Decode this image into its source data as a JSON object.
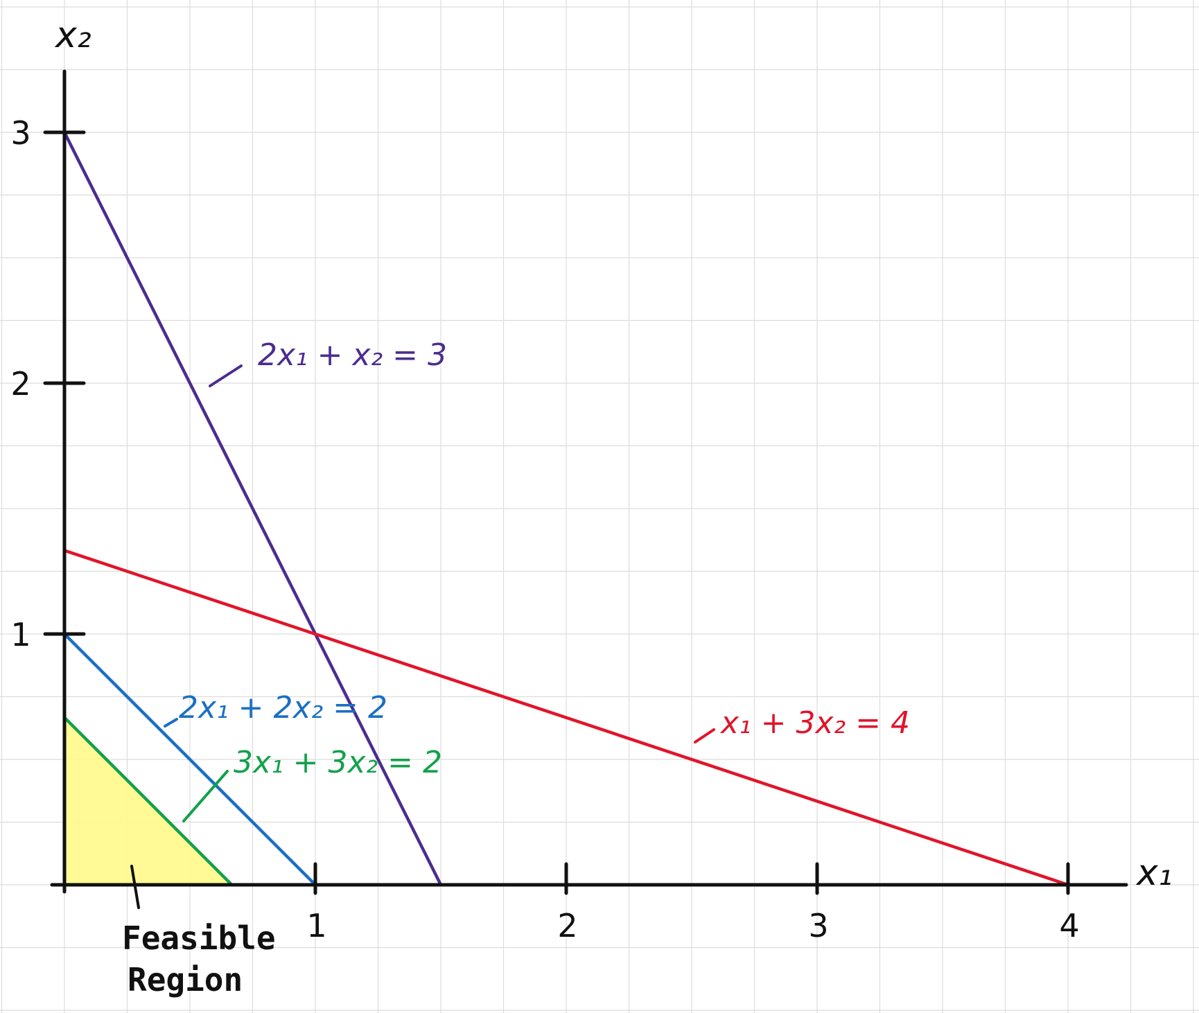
{
  "chart_data": {
    "type": "line",
    "xlabel": "x₁",
    "ylabel": "x₂",
    "xlim": [
      0,
      4.2
    ],
    "ylim": [
      0,
      3.2
    ],
    "x_ticks": [
      "1",
      "2",
      "3",
      "4"
    ],
    "y_ticks": [
      "1",
      "2",
      "3"
    ],
    "grid": true,
    "series": [
      {
        "name": "2x₁ + x₂ = 3",
        "color": "#4b2c8f",
        "x": [
          0,
          1.5
        ],
        "y": [
          3,
          0
        ]
      },
      {
        "name": "x₁ + 3x₂ = 4",
        "color": "#e0152b",
        "x": [
          0,
          4
        ],
        "y": [
          1.333,
          0
        ]
      },
      {
        "name": "2x₁ + 2x₂ = 2",
        "color": "#1a6fc4",
        "x": [
          0,
          1
        ],
        "y": [
          1,
          0
        ]
      },
      {
        "name": "3x₁ + 3x₂ = 2",
        "color": "#12a14a",
        "x": [
          0,
          0.667
        ],
        "y": [
          0.667,
          0
        ]
      }
    ],
    "feasible_region": {
      "label": "Feasible Region",
      "color": "#fff98a",
      "x": [
        0,
        0.667,
        0
      ],
      "y": [
        0,
        0,
        0.667
      ]
    }
  }
}
